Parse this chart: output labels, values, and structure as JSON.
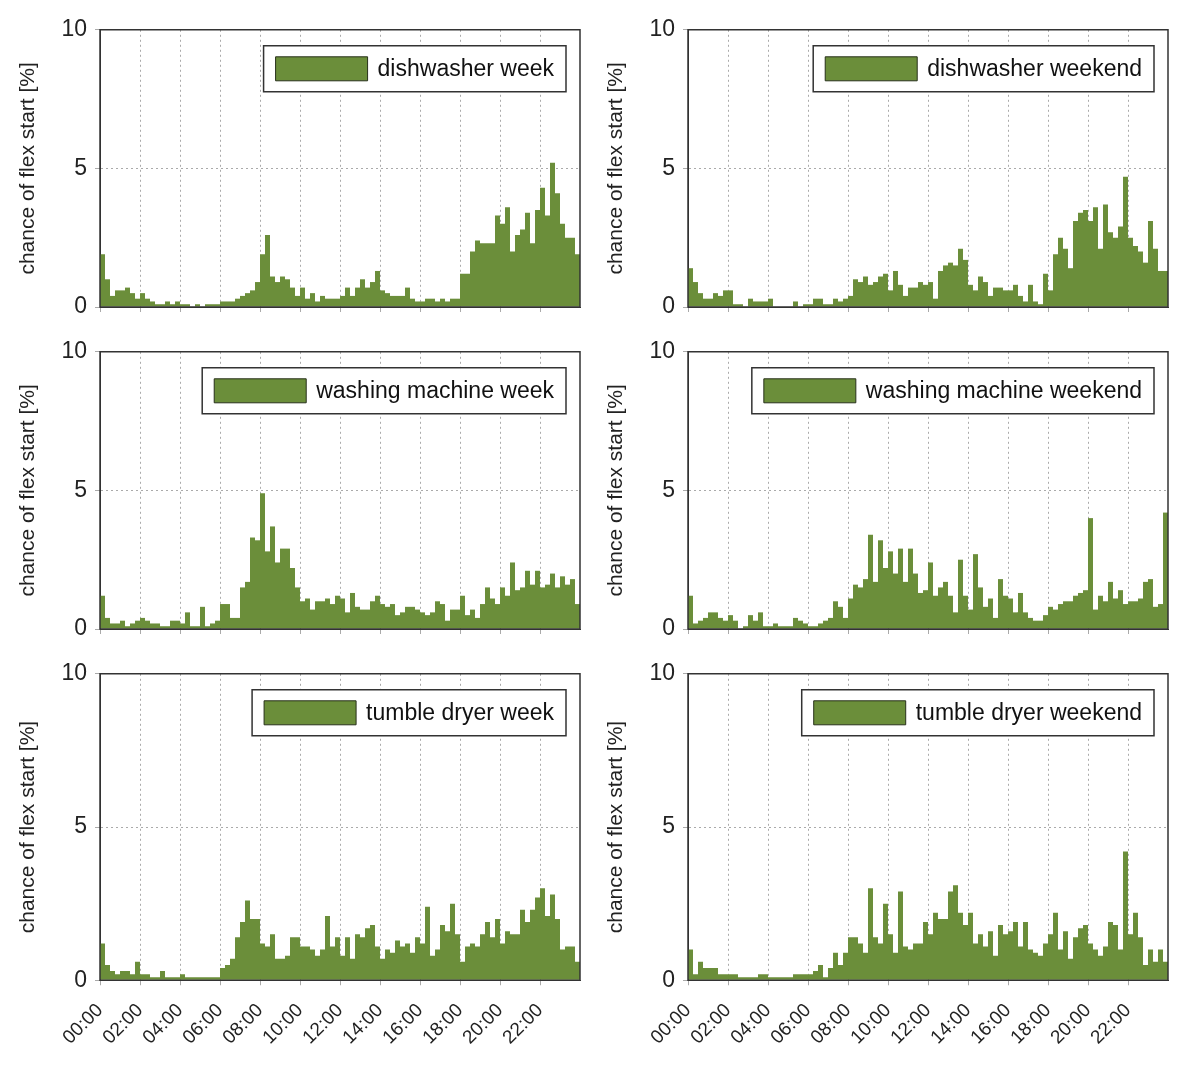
{
  "chart_data": [
    {
      "type": "histogram",
      "ylabel": "chance of flex start [%]",
      "legend": "top right",
      "grid": true,
      "tick_labels": "y",
      "xlim": [
        0,
        24
      ],
      "ylim": [
        0,
        10
      ],
      "yticks": [
        0,
        5,
        10
      ],
      "xticks": [
        {
          "value": 0,
          "label": null
        },
        {
          "value": 2,
          "label": null
        },
        {
          "value": 4,
          "label": null
        },
        {
          "value": 6,
          "label": null
        },
        {
          "value": 8,
          "label": null
        },
        {
          "value": 10,
          "label": null
        },
        {
          "value": 12,
          "label": null
        },
        {
          "value": 14,
          "label": null
        },
        {
          "value": 16,
          "label": null
        },
        {
          "value": 18,
          "label": null
        },
        {
          "value": 20,
          "label": null
        },
        {
          "value": 22,
          "label": null
        }
      ],
      "bins": [
        0,
        0.25,
        0.5,
        0.75,
        1,
        1.25,
        1.5,
        1.75,
        2,
        2.25,
        2.5,
        2.75,
        3,
        3.25,
        3.5,
        3.75,
        4,
        4.25,
        4.5,
        4.75,
        5,
        5.25,
        5.5,
        5.75,
        6,
        6.25,
        6.5,
        6.75,
        7,
        7.25,
        7.5,
        7.75,
        8,
        8.25,
        8.5,
        8.75,
        9,
        9.25,
        9.5,
        9.75,
        10,
        10.25,
        10.5,
        10.75,
        11,
        11.25,
        11.5,
        11.75,
        12,
        12.25,
        12.5,
        12.75,
        13,
        13.25,
        13.5,
        13.75,
        14,
        14.25,
        14.5,
        14.75,
        15,
        15.25,
        15.5,
        15.75,
        16,
        16.25,
        16.5,
        16.75,
        17,
        17.25,
        17.5,
        17.75,
        18,
        18.25,
        18.5,
        18.75,
        19,
        19.25,
        19.5,
        19.75,
        20,
        20.25,
        20.5,
        20.75,
        21,
        21.25,
        21.5,
        21.75,
        22,
        22.25,
        22.5,
        22.75,
        23,
        23.25,
        23.5,
        23.75,
        24
      ],
      "series": [
        {
          "name": "dishwasher week",
          "color": "#6b8e3a",
          "values": [
            1.9,
            1,
            0.4,
            0.6,
            0.6,
            0.7,
            0.5,
            0.3,
            0.5,
            0.3,
            0.2,
            0.1,
            0.1,
            0.2,
            0.1,
            0.2,
            0.1,
            0.1,
            0,
            0.1,
            0,
            0.1,
            0.1,
            0.1,
            0.2,
            0.2,
            0.2,
            0.3,
            0.4,
            0.5,
            0.6,
            0.9,
            1.9,
            2.6,
            1.1,
            0.9,
            1.1,
            1,
            0.7,
            0.4,
            0.7,
            0.3,
            0.5,
            0.2,
            0.4,
            0.3,
            0.3,
            0.3,
            0.4,
            0.7,
            0.4,
            0.7,
            1,
            0.7,
            0.9,
            1.3,
            0.6,
            0.5,
            0.4,
            0.4,
            0.4,
            0.7,
            0.3,
            0.2,
            0.2,
            0.3,
            0.3,
            0.2,
            0.3,
            0.2,
            0.3,
            0.3,
            1.2,
            1.2,
            2,
            2.4,
            2.3,
            2.3,
            2.3,
            3.3,
            3,
            3.6,
            2,
            2.6,
            2.8,
            3.4,
            2.3,
            3.5,
            4.3,
            3.3,
            5.2,
            4.1,
            3,
            2.5,
            2.5,
            1.9
          ]
        }
      ]
    },
    {
      "type": "histogram",
      "ylabel": "chance of flex start [%]",
      "legend": "top right",
      "grid": true,
      "tick_labels": "y",
      "xlim": [
        0,
        24
      ],
      "ylim": [
        0,
        10
      ],
      "yticks": [
        0,
        5,
        10
      ],
      "xticks": [
        {
          "value": 0,
          "label": null
        },
        {
          "value": 2,
          "label": null
        },
        {
          "value": 4,
          "label": null
        },
        {
          "value": 6,
          "label": null
        },
        {
          "value": 8,
          "label": null
        },
        {
          "value": 10,
          "label": null
        },
        {
          "value": 12,
          "label": null
        },
        {
          "value": 14,
          "label": null
        },
        {
          "value": 16,
          "label": null
        },
        {
          "value": 18,
          "label": null
        },
        {
          "value": 20,
          "label": null
        },
        {
          "value": 22,
          "label": null
        }
      ],
      "bins": [
        0,
        0.25,
        0.5,
        0.75,
        1,
        1.25,
        1.5,
        1.75,
        2,
        2.25,
        2.5,
        2.75,
        3,
        3.25,
        3.5,
        3.75,
        4,
        4.25,
        4.5,
        4.75,
        5,
        5.25,
        5.5,
        5.75,
        6,
        6.25,
        6.5,
        6.75,
        7,
        7.25,
        7.5,
        7.75,
        8,
        8.25,
        8.5,
        8.75,
        9,
        9.25,
        9.5,
        9.75,
        10,
        10.25,
        10.5,
        10.75,
        11,
        11.25,
        11.5,
        11.75,
        12,
        12.25,
        12.5,
        12.75,
        13,
        13.25,
        13.5,
        13.75,
        14,
        14.25,
        14.5,
        14.75,
        15,
        15.25,
        15.5,
        15.75,
        16,
        16.25,
        16.5,
        16.75,
        17,
        17.25,
        17.5,
        17.75,
        18,
        18.25,
        18.5,
        18.75,
        19,
        19.25,
        19.5,
        19.75,
        20,
        20.25,
        20.5,
        20.75,
        21,
        21.25,
        21.5,
        21.75,
        22,
        22.25,
        22.5,
        22.75,
        23,
        23.25,
        23.5,
        23.75,
        24
      ],
      "series": [
        {
          "name": "dishwasher weekend",
          "color": "#6b8e3a",
          "values": [
            1.4,
            0.9,
            0.5,
            0.3,
            0.3,
            0.5,
            0.4,
            0.6,
            0.6,
            0.1,
            0.1,
            0,
            0.3,
            0.2,
            0.2,
            0.2,
            0.3,
            0,
            0,
            0,
            0,
            0.2,
            0,
            0.1,
            0.1,
            0.3,
            0.3,
            0.1,
            0.1,
            0.3,
            0.2,
            0.3,
            0.4,
            1,
            0.9,
            1.1,
            0.8,
            0.9,
            1.1,
            1.2,
            0.6,
            1.3,
            0.8,
            0.4,
            0.7,
            0.7,
            0.9,
            0.8,
            0.9,
            0.3,
            1.3,
            1.5,
            1.6,
            1.5,
            2.1,
            1.7,
            0.8,
            0.6,
            1.1,
            0.9,
            0.4,
            0.7,
            0.7,
            0.6,
            0.6,
            0.8,
            0.4,
            0.2,
            0.8,
            0.2,
            0.1,
            1.2,
            0.6,
            1.9,
            2.5,
            2.1,
            1.4,
            3.1,
            3.4,
            3.5,
            3.1,
            3.6,
            2.1,
            3.7,
            2.7,
            2.5,
            2.9,
            4.7,
            2.5,
            2.2,
            2,
            1.6,
            3.1,
            2.1,
            1.3,
            1.3
          ]
        }
      ]
    },
    {
      "type": "histogram",
      "ylabel": "chance of flex start [%]",
      "legend": "top right",
      "grid": true,
      "tick_labels": "y",
      "xlim": [
        0,
        24
      ],
      "ylim": [
        0,
        10
      ],
      "yticks": [
        0,
        5,
        10
      ],
      "xticks": [
        {
          "value": 0,
          "label": null
        },
        {
          "value": 2,
          "label": null
        },
        {
          "value": 4,
          "label": null
        },
        {
          "value": 6,
          "label": null
        },
        {
          "value": 8,
          "label": null
        },
        {
          "value": 10,
          "label": null
        },
        {
          "value": 12,
          "label": null
        },
        {
          "value": 14,
          "label": null
        },
        {
          "value": 16,
          "label": null
        },
        {
          "value": 18,
          "label": null
        },
        {
          "value": 20,
          "label": null
        },
        {
          "value": 22,
          "label": null
        }
      ],
      "bins": [
        0,
        0.25,
        0.5,
        0.75,
        1,
        1.25,
        1.5,
        1.75,
        2,
        2.25,
        2.5,
        2.75,
        3,
        3.25,
        3.5,
        3.75,
        4,
        4.25,
        4.5,
        4.75,
        5,
        5.25,
        5.5,
        5.75,
        6,
        6.25,
        6.5,
        6.75,
        7,
        7.25,
        7.5,
        7.75,
        8,
        8.25,
        8.5,
        8.75,
        9,
        9.25,
        9.5,
        9.75,
        10,
        10.25,
        10.5,
        10.75,
        11,
        11.25,
        11.5,
        11.75,
        12,
        12.25,
        12.5,
        12.75,
        13,
        13.25,
        13.5,
        13.75,
        14,
        14.25,
        14.5,
        14.75,
        15,
        15.25,
        15.5,
        15.75,
        16,
        16.25,
        16.5,
        16.75,
        17,
        17.25,
        17.5,
        17.75,
        18,
        18.25,
        18.5,
        18.75,
        19,
        19.25,
        19.5,
        19.75,
        20,
        20.25,
        20.5,
        20.75,
        21,
        21.25,
        21.5,
        21.75,
        22,
        22.25,
        22.5,
        22.75,
        23,
        23.25,
        23.5,
        23.75,
        24
      ],
      "series": [
        {
          "name": "washing machine week",
          "color": "#6b8e3a",
          "values": [
            1.2,
            0.4,
            0.2,
            0.2,
            0.3,
            0.1,
            0.2,
            0.3,
            0.4,
            0.3,
            0.2,
            0.2,
            0.1,
            0.1,
            0.3,
            0.3,
            0.2,
            0.6,
            0.1,
            0.1,
            0.8,
            0.1,
            0.2,
            0.3,
            0.9,
            0.9,
            0.4,
            0.4,
            1.5,
            1.7,
            3.3,
            3.2,
            4.9,
            2.8,
            3.7,
            2.4,
            2.9,
            2.9,
            2.2,
            1.5,
            1,
            1.1,
            0.7,
            1,
            1,
            1.1,
            0.9,
            1.2,
            1.1,
            0.6,
            1.3,
            0.8,
            0.7,
            0.7,
            1,
            1.2,
            0.9,
            0.8,
            0.9,
            0.5,
            0.6,
            0.8,
            0.8,
            0.7,
            0.6,
            0.5,
            0.6,
            1,
            0.9,
            0.3,
            0.7,
            0.7,
            1.2,
            0.5,
            0.7,
            0.4,
            0.9,
            1.5,
            1.1,
            0.9,
            1.5,
            1.2,
            2.4,
            1.4,
            1.5,
            2.1,
            1.6,
            2.1,
            1.5,
            1.6,
            2,
            1.5,
            1.9,
            1.6,
            1.8,
            0.9
          ]
        }
      ]
    },
    {
      "type": "histogram",
      "ylabel": "chance of flex start [%]",
      "legend": "top right",
      "grid": true,
      "tick_labels": "y",
      "xlim": [
        0,
        24
      ],
      "ylim": [
        0,
        10
      ],
      "yticks": [
        0,
        5,
        10
      ],
      "xticks": [
        {
          "value": 0,
          "label": null
        },
        {
          "value": 2,
          "label": null
        },
        {
          "value": 4,
          "label": null
        },
        {
          "value": 6,
          "label": null
        },
        {
          "value": 8,
          "label": null
        },
        {
          "value": 10,
          "label": null
        },
        {
          "value": 12,
          "label": null
        },
        {
          "value": 14,
          "label": null
        },
        {
          "value": 16,
          "label": null
        },
        {
          "value": 18,
          "label": null
        },
        {
          "value": 20,
          "label": null
        },
        {
          "value": 22,
          "label": null
        }
      ],
      "bins": [
        0,
        0.25,
        0.5,
        0.75,
        1,
        1.25,
        1.5,
        1.75,
        2,
        2.25,
        2.5,
        2.75,
        3,
        3.25,
        3.5,
        3.75,
        4,
        4.25,
        4.5,
        4.75,
        5,
        5.25,
        5.5,
        5.75,
        6,
        6.25,
        6.5,
        6.75,
        7,
        7.25,
        7.5,
        7.75,
        8,
        8.25,
        8.5,
        8.75,
        9,
        9.25,
        9.5,
        9.75,
        10,
        10.25,
        10.5,
        10.75,
        11,
        11.25,
        11.5,
        11.75,
        12,
        12.25,
        12.5,
        12.75,
        13,
        13.25,
        13.5,
        13.75,
        14,
        14.25,
        14.5,
        14.75,
        15,
        15.25,
        15.5,
        15.75,
        16,
        16.25,
        16.5,
        16.75,
        17,
        17.25,
        17.5,
        17.75,
        18,
        18.25,
        18.5,
        18.75,
        19,
        19.25,
        19.5,
        19.75,
        20,
        20.25,
        20.5,
        20.75,
        21,
        21.25,
        21.5,
        21.75,
        22,
        22.25,
        22.5,
        22.75,
        23,
        23.25,
        23.5,
        23.75,
        24
      ],
      "series": [
        {
          "name": "washing machine weekend",
          "color": "#6b8e3a",
          "values": [
            1.2,
            0.2,
            0.3,
            0.4,
            0.6,
            0.6,
            0.4,
            0.3,
            0.5,
            0.3,
            0,
            0.1,
            0.5,
            0.3,
            0.6,
            0.1,
            0.1,
            0.2,
            0.1,
            0.1,
            0.1,
            0.4,
            0.3,
            0.2,
            0.1,
            0.1,
            0.2,
            0.3,
            0.4,
            1,
            0.8,
            0.4,
            1.1,
            1.6,
            1.5,
            1.8,
            3.4,
            1.7,
            3.2,
            2.2,
            2.8,
            2,
            2.9,
            1.7,
            2.9,
            2,
            1.3,
            1.4,
            2.4,
            1.2,
            1.5,
            1.7,
            1.2,
            0.6,
            2.5,
            1.2,
            0.7,
            2.7,
            1.5,
            0.8,
            1.1,
            0.4,
            1.8,
            1.2,
            1.1,
            0.6,
            1.3,
            0.6,
            0.4,
            0.3,
            0.3,
            0.5,
            0.8,
            0.7,
            0.9,
            1,
            1,
            1.2,
            1.3,
            1.4,
            4,
            0.7,
            1.2,
            1,
            1.7,
            1.1,
            1.4,
            0.9,
            1,
            1,
            1.1,
            1.7,
            1.8,
            0.8,
            0.9,
            4.2
          ]
        }
      ]
    },
    {
      "type": "histogram",
      "ylabel": "chance of flex start [%]",
      "legend": "top right",
      "grid": true,
      "xlim": [
        0,
        24
      ],
      "ylim": [
        0,
        10
      ],
      "yticks": [
        0,
        5,
        10
      ],
      "xticks": [
        {
          "value": 0,
          "label": "00:00"
        },
        {
          "value": 2,
          "label": "02:00"
        },
        {
          "value": 4,
          "label": "04:00"
        },
        {
          "value": 6,
          "label": "06:00"
        },
        {
          "value": 8,
          "label": "08:00"
        },
        {
          "value": 10,
          "label": "10:00"
        },
        {
          "value": 12,
          "label": "12:00"
        },
        {
          "value": 14,
          "label": "14:00"
        },
        {
          "value": 16,
          "label": "16:00"
        },
        {
          "value": 18,
          "label": "18:00"
        },
        {
          "value": 20,
          "label": "20:00"
        },
        {
          "value": 22,
          "label": "22:00"
        }
      ],
      "bins": [
        0,
        0.25,
        0.5,
        0.75,
        1,
        1.25,
        1.5,
        1.75,
        2,
        2.25,
        2.5,
        2.75,
        3,
        3.25,
        3.5,
        3.75,
        4,
        4.25,
        4.5,
        4.75,
        5,
        5.25,
        5.5,
        5.75,
        6,
        6.25,
        6.5,
        6.75,
        7,
        7.25,
        7.5,
        7.75,
        8,
        8.25,
        8.5,
        8.75,
        9,
        9.25,
        9.5,
        9.75,
        10,
        10.25,
        10.5,
        10.75,
        11,
        11.25,
        11.5,
        11.75,
        12,
        12.25,
        12.5,
        12.75,
        13,
        13.25,
        13.5,
        13.75,
        14,
        14.25,
        14.5,
        14.75,
        15,
        15.25,
        15.5,
        15.75,
        16,
        16.25,
        16.5,
        16.75,
        17,
        17.25,
        17.5,
        17.75,
        18,
        18.25,
        18.5,
        18.75,
        19,
        19.25,
        19.5,
        19.75,
        20,
        20.25,
        20.5,
        20.75,
        21,
        21.25,
        21.5,
        21.75,
        22,
        22.25,
        22.5,
        22.75,
        23,
        23.25,
        23.5,
        23.75,
        24
      ],
      "series": [
        {
          "name": "tumble dryer week",
          "color": "#6b8e3a",
          "values": [
            1.2,
            0.5,
            0.3,
            0.2,
            0.3,
            0.3,
            0.2,
            0.6,
            0.2,
            0.2,
            0.1,
            0.1,
            0.3,
            0.1,
            0.1,
            0.1,
            0.2,
            0.1,
            0.1,
            0.1,
            0.1,
            0.1,
            0.1,
            0.1,
            0.4,
            0.5,
            0.7,
            1.4,
            1.9,
            2.6,
            2,
            2,
            1.2,
            1.1,
            1.5,
            0.7,
            0.7,
            0.8,
            1.4,
            1.4,
            1.1,
            1.1,
            1,
            0.8,
            1,
            2.1,
            1.1,
            1.4,
            0.8,
            1.4,
            0.7,
            1.5,
            1.4,
            1.7,
            1.8,
            1.1,
            0.7,
            1,
            0.9,
            1.3,
            1.1,
            1.2,
            0.9,
            1.4,
            1.2,
            2.4,
            0.8,
            1,
            1.8,
            1.6,
            2.5,
            1.5,
            0.6,
            1.1,
            1.2,
            1.1,
            1.5,
            1.9,
            1.4,
            2,
            1.2,
            1.6,
            1.5,
            1.5,
            2.3,
            1.9,
            2.3,
            2.7,
            3,
            2.1,
            2.8,
            2,
            1,
            1.1,
            1.1,
            0.6
          ]
        }
      ]
    },
    {
      "type": "histogram",
      "ylabel": "chance of flex start [%]",
      "legend": "top right",
      "grid": true,
      "xlim": [
        0,
        24
      ],
      "ylim": [
        0,
        10
      ],
      "yticks": [
        0,
        5,
        10
      ],
      "xticks": [
        {
          "value": 0,
          "label": "00:00"
        },
        {
          "value": 2,
          "label": "02:00"
        },
        {
          "value": 4,
          "label": "04:00"
        },
        {
          "value": 6,
          "label": "06:00"
        },
        {
          "value": 8,
          "label": "08:00"
        },
        {
          "value": 10,
          "label": "10:00"
        },
        {
          "value": 12,
          "label": "12:00"
        },
        {
          "value": 14,
          "label": "14:00"
        },
        {
          "value": 16,
          "label": "16:00"
        },
        {
          "value": 18,
          "label": "18:00"
        },
        {
          "value": 20,
          "label": "20:00"
        },
        {
          "value": 22,
          "label": "22:00"
        }
      ],
      "bins": [
        0,
        0.25,
        0.5,
        0.75,
        1,
        1.25,
        1.5,
        1.75,
        2,
        2.25,
        2.5,
        2.75,
        3,
        3.25,
        3.5,
        3.75,
        4,
        4.25,
        4.5,
        4.75,
        5,
        5.25,
        5.5,
        5.75,
        6,
        6.25,
        6.5,
        6.75,
        7,
        7.25,
        7.5,
        7.75,
        8,
        8.25,
        8.5,
        8.75,
        9,
        9.25,
        9.5,
        9.75,
        10,
        10.25,
        10.5,
        10.75,
        11,
        11.25,
        11.5,
        11.75,
        12,
        12.25,
        12.5,
        12.75,
        13,
        13.25,
        13.5,
        13.75,
        14,
        14.25,
        14.5,
        14.75,
        15,
        15.25,
        15.5,
        15.75,
        16,
        16.25,
        16.5,
        16.75,
        17,
        17.25,
        17.5,
        17.75,
        18,
        18.25,
        18.5,
        18.75,
        19,
        19.25,
        19.5,
        19.75,
        20,
        20.25,
        20.5,
        20.75,
        21,
        21.25,
        21.5,
        21.75,
        22,
        22.25,
        22.5,
        22.75,
        23,
        23.25,
        23.5,
        23.75,
        24
      ],
      "series": [
        {
          "name": "tumble dryer weekend",
          "color": "#6b8e3a",
          "values": [
            1,
            0.2,
            0.6,
            0.4,
            0.4,
            0.4,
            0.2,
            0.2,
            0.2,
            0.2,
            0.1,
            0.1,
            0.1,
            0.1,
            0.2,
            0.2,
            0.1,
            0.1,
            0.1,
            0.1,
            0.1,
            0.2,
            0.2,
            0.2,
            0.2,
            0.3,
            0.5,
            0.1,
            0.4,
            0.9,
            0.5,
            0.9,
            1.4,
            1.4,
            1.2,
            0.9,
            3,
            1.4,
            1.2,
            2.5,
            1.5,
            0.9,
            2.9,
            1.1,
            1,
            1.2,
            1.2,
            1.9,
            1.5,
            2.2,
            2,
            2,
            2.9,
            3.1,
            2.2,
            1.8,
            2.2,
            1.2,
            1.5,
            1.1,
            1.6,
            0.8,
            1.8,
            1.5,
            1.6,
            1.9,
            1.1,
            1.9,
            1,
            0.9,
            0.8,
            1.2,
            1.5,
            2.2,
            1,
            1.6,
            0.7,
            1.4,
            1.7,
            1.8,
            1.2,
            1,
            0.8,
            1.1,
            1.9,
            1.8,
            1,
            4.2,
            1.5,
            2.2,
            1.4,
            0.5,
            1,
            0.6,
            1,
            0.6
          ]
        }
      ]
    }
  ]
}
